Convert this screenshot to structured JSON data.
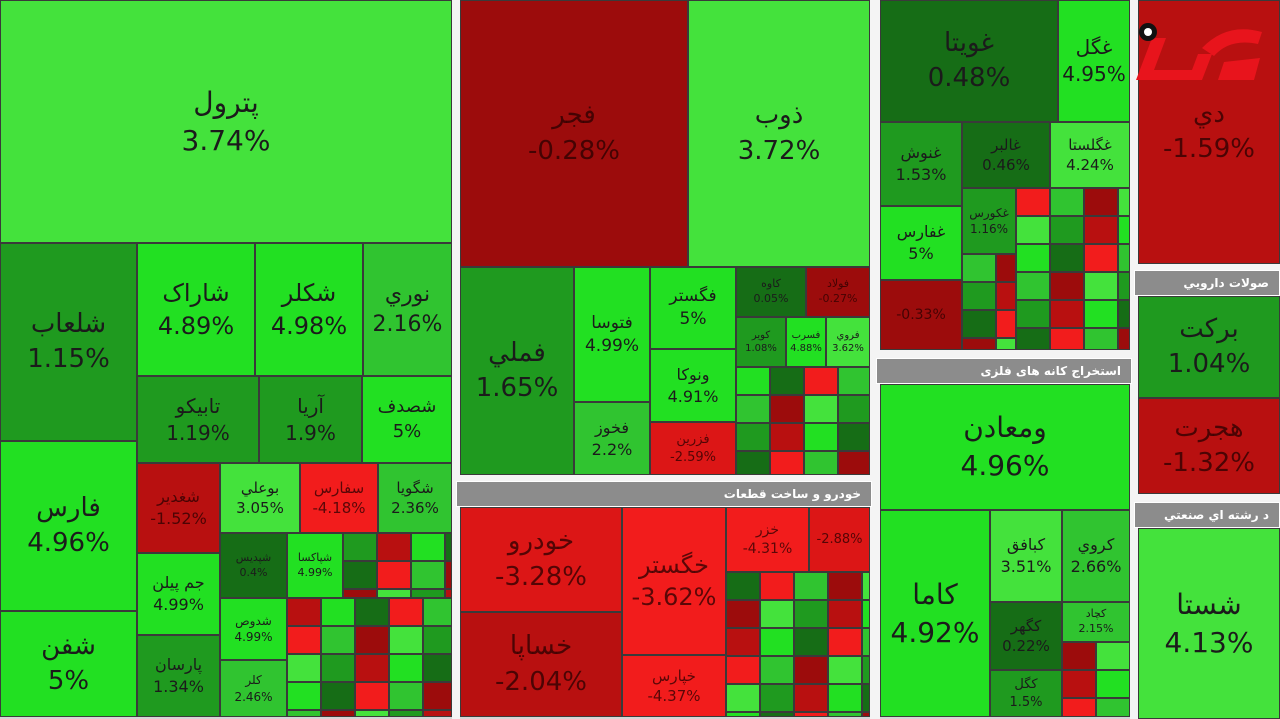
{
  "headers": [
    "خودرو و ساخت قطعات",
    "استخراج کانه های فلزی",
    "صولات دارويي",
    "د رشته اي صنعتي"
  ],
  "tiles": [
    {
      "name": "پترول",
      "change": "3.74%"
    },
    {
      "name": "شلعاب",
      "change": "1.15%"
    },
    {
      "name": "شاراک",
      "change": "4.89%"
    },
    {
      "name": "شکلر",
      "change": "4.98%"
    },
    {
      "name": "نوري",
      "change": "2.16%"
    },
    {
      "name": "تابیکو",
      "change": "1.19%"
    },
    {
      "name": "آریا",
      "change": "1.9%"
    },
    {
      "name": "شصدف",
      "change": "5%"
    },
    {
      "name": "فارس",
      "change": "4.96%"
    },
    {
      "name": "شفن",
      "change": "5%"
    },
    {
      "name": "شغدير",
      "change": "-1.52%"
    },
    {
      "name": "بوعلي",
      "change": "3.05%"
    },
    {
      "name": "سفارس",
      "change": "-4.18%"
    },
    {
      "name": "شگويا",
      "change": "2.36%"
    },
    {
      "name": "جم پيلن",
      "change": "4.99%"
    },
    {
      "name": "پارسان",
      "change": "1.34%"
    },
    {
      "name": "شپديس",
      "change": "0.4%"
    },
    {
      "name": "شپاکسا",
      "change": "4.99%"
    },
    {
      "name": "شدوص",
      "change": "4.99%"
    },
    {
      "name": "کلر",
      "change": "2.46%"
    },
    {
      "name": "فجر",
      "change": "-0.28%"
    },
    {
      "name": "ذوب",
      "change": "3.72%"
    },
    {
      "name": "فملي",
      "change": "1.65%"
    },
    {
      "name": "فتوسا",
      "change": "4.99%"
    },
    {
      "name": "فگستر",
      "change": "5%"
    },
    {
      "name": "ونوكا",
      "change": "4.91%"
    },
    {
      "name": "فخوز",
      "change": "2.2%"
    },
    {
      "name": "فزرين",
      "change": "-2.59%"
    },
    {
      "name": "كاوه",
      "change": "0.05%"
    },
    {
      "name": "فولاد",
      "change": "-0.27%"
    },
    {
      "name": "كوير",
      "change": "1.08%"
    },
    {
      "name": "فسرب",
      "change": "4.88%"
    },
    {
      "name": "فروي",
      "change": "3.62%"
    },
    {
      "name": "خودرو",
      "change": "-3.28%"
    },
    {
      "name": "خگستر",
      "change": "-3.62%"
    },
    {
      "name": "خزر",
      "change": "-4.31%"
    },
    {
      "change": "-2.88%"
    },
    {
      "name": "خساپا",
      "change": "-2.04%"
    },
    {
      "name": "خپارس",
      "change": "-4.37%"
    },
    {
      "name": "غویتا",
      "change": "0.48%"
    },
    {
      "name": "غگل",
      "change": "4.95%"
    },
    {
      "name": "غنوش",
      "change": "1.53%"
    },
    {
      "name": "غالبر",
      "change": "0.46%"
    },
    {
      "name": "غگلستا",
      "change": "4.24%"
    },
    {
      "name": "غفارس",
      "change": "5%"
    },
    {
      "name": "غکورس",
      "change": "1.16%"
    },
    {
      "change": "-0.33%"
    },
    {
      "name": "ومعادن",
      "change": "4.96%"
    },
    {
      "name": "كاما",
      "change": "4.92%"
    },
    {
      "name": "کبافق",
      "change": "3.51%"
    },
    {
      "name": "کروي",
      "change": "2.66%"
    },
    {
      "name": "کگهر",
      "change": "0.22%"
    },
    {
      "name": "کگل",
      "change": "1.5%"
    },
    {
      "name": "کچاد",
      "change": "2.15%"
    },
    {
      "name": "دي",
      "change": "-1.59%"
    },
    {
      "name": "برکت",
      "change": "1.04%"
    },
    {
      "name": "هجرت",
      "change": "-1.32%"
    },
    {
      "name": "شستا",
      "change": "4.13%"
    }
  ]
}
